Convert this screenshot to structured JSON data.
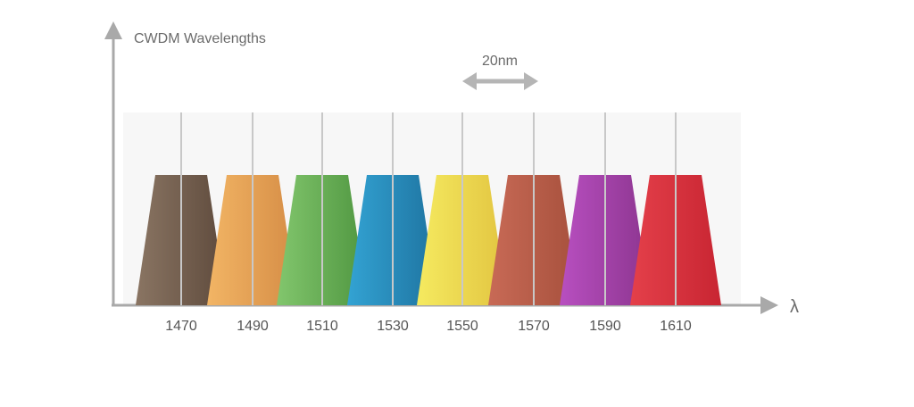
{
  "title": "CWDM Wavelengths",
  "x_axis_symbol": "λ",
  "spacing_label": "20nm",
  "channels": [
    {
      "wavelength": "1470",
      "color_start": "#8a7563",
      "color_end": "#5e4a3c"
    },
    {
      "wavelength": "1490",
      "color_start": "#f2b565",
      "color_end": "#d58c45"
    },
    {
      "wavelength": "1510",
      "color_start": "#82c66d",
      "color_end": "#4f9640"
    },
    {
      "wavelength": "1530",
      "color_start": "#33a3d3",
      "color_end": "#1e73a0"
    },
    {
      "wavelength": "1550",
      "color_start": "#f5ea60",
      "color_end": "#e2c440"
    },
    {
      "wavelength": "1570",
      "color_start": "#c86a56",
      "color_end": "#a6503c"
    },
    {
      "wavelength": "1590",
      "color_start": "#b84fc0",
      "color_end": "#8c358f"
    },
    {
      "wavelength": "1610",
      "color_start": "#e4404a",
      "color_end": "#c82532"
    }
  ],
  "colors": {
    "axis": "#a9a9a9",
    "reference_line": "#c8c8c8",
    "band_background": "#f7f7f7",
    "spacing_arrow": "#b5b5b5"
  }
}
